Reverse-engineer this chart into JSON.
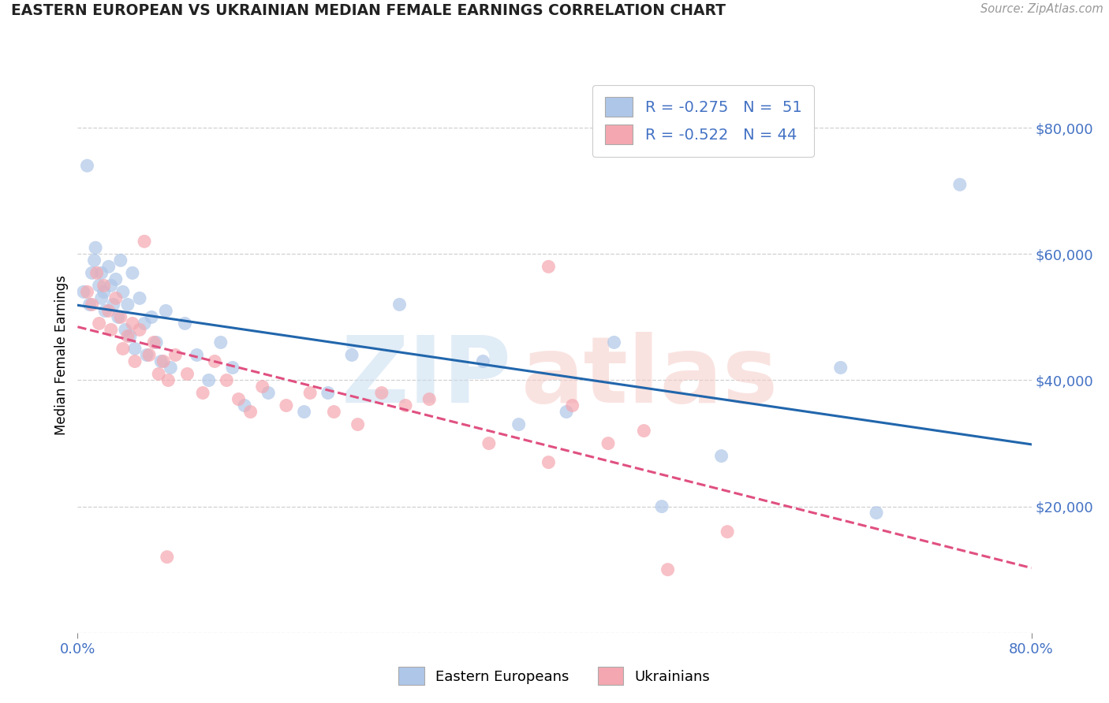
{
  "title": "EASTERN EUROPEAN VS UKRAINIAN MEDIAN FEMALE EARNINGS CORRELATION CHART",
  "source": "Source: ZipAtlas.com",
  "ylabel": "Median Female Earnings",
  "xlim": [
    0.0,
    0.8
  ],
  "ylim": [
    0,
    88000
  ],
  "yticks": [
    0,
    20000,
    40000,
    60000,
    80000
  ],
  "ytick_labels": [
    "",
    "$20,000",
    "$40,000",
    "$60,000",
    "$80,000"
  ],
  "xtick_labels": [
    "0.0%",
    "80.0%"
  ],
  "legend_line1": "R = -0.275   N =  51",
  "legend_line2": "R = -0.522   N = 44",
  "blue_color": "#aec6e8",
  "pink_color": "#f4a7b0",
  "blue_line_color": "#2166ac",
  "pink_line_color": "#e05080",
  "dashed_line_color": "#e8b0b8",
  "blue_scatter": [
    [
      0.005,
      54000
    ],
    [
      0.01,
      52000
    ],
    [
      0.012,
      57000
    ],
    [
      0.014,
      59000
    ],
    [
      0.015,
      61000
    ],
    [
      0.018,
      55000
    ],
    [
      0.02,
      57000
    ],
    [
      0.02,
      53000
    ],
    [
      0.022,
      54000
    ],
    [
      0.023,
      51000
    ],
    [
      0.026,
      58000
    ],
    [
      0.028,
      55000
    ],
    [
      0.03,
      52000
    ],
    [
      0.032,
      56000
    ],
    [
      0.034,
      50000
    ],
    [
      0.036,
      59000
    ],
    [
      0.038,
      54000
    ],
    [
      0.04,
      48000
    ],
    [
      0.042,
      52000
    ],
    [
      0.044,
      47000
    ],
    [
      0.046,
      57000
    ],
    [
      0.048,
      45000
    ],
    [
      0.052,
      53000
    ],
    [
      0.056,
      49000
    ],
    [
      0.058,
      44000
    ],
    [
      0.062,
      50000
    ],
    [
      0.066,
      46000
    ],
    [
      0.07,
      43000
    ],
    [
      0.074,
      51000
    ],
    [
      0.078,
      42000
    ],
    [
      0.09,
      49000
    ],
    [
      0.1,
      44000
    ],
    [
      0.11,
      40000
    ],
    [
      0.12,
      46000
    ],
    [
      0.13,
      42000
    ],
    [
      0.14,
      36000
    ],
    [
      0.16,
      38000
    ],
    [
      0.19,
      35000
    ],
    [
      0.21,
      38000
    ],
    [
      0.23,
      44000
    ],
    [
      0.27,
      52000
    ],
    [
      0.34,
      43000
    ],
    [
      0.37,
      33000
    ],
    [
      0.41,
      35000
    ],
    [
      0.45,
      46000
    ],
    [
      0.49,
      20000
    ],
    [
      0.54,
      28000
    ],
    [
      0.64,
      42000
    ],
    [
      0.67,
      19000
    ],
    [
      0.74,
      71000
    ],
    [
      0.008,
      74000
    ]
  ],
  "pink_scatter": [
    [
      0.008,
      54000
    ],
    [
      0.012,
      52000
    ],
    [
      0.016,
      57000
    ],
    [
      0.018,
      49000
    ],
    [
      0.022,
      55000
    ],
    [
      0.026,
      51000
    ],
    [
      0.028,
      48000
    ],
    [
      0.032,
      53000
    ],
    [
      0.036,
      50000
    ],
    [
      0.038,
      45000
    ],
    [
      0.042,
      47000
    ],
    [
      0.046,
      49000
    ],
    [
      0.048,
      43000
    ],
    [
      0.052,
      48000
    ],
    [
      0.056,
      62000
    ],
    [
      0.06,
      44000
    ],
    [
      0.064,
      46000
    ],
    [
      0.068,
      41000
    ],
    [
      0.072,
      43000
    ],
    [
      0.076,
      40000
    ],
    [
      0.082,
      44000
    ],
    [
      0.092,
      41000
    ],
    [
      0.105,
      38000
    ],
    [
      0.115,
      43000
    ],
    [
      0.125,
      40000
    ],
    [
      0.135,
      37000
    ],
    [
      0.145,
      35000
    ],
    [
      0.155,
      39000
    ],
    [
      0.175,
      36000
    ],
    [
      0.195,
      38000
    ],
    [
      0.215,
      35000
    ],
    [
      0.235,
      33000
    ],
    [
      0.255,
      38000
    ],
    [
      0.275,
      36000
    ],
    [
      0.295,
      37000
    ],
    [
      0.345,
      30000
    ],
    [
      0.395,
      27000
    ],
    [
      0.415,
      36000
    ],
    [
      0.445,
      30000
    ],
    [
      0.475,
      32000
    ],
    [
      0.495,
      10000
    ],
    [
      0.545,
      16000
    ],
    [
      0.075,
      12000
    ],
    [
      0.395,
      58000
    ]
  ],
  "grid_color": "#d0d0d0",
  "bg_color": "#ffffff",
  "title_color": "#222222",
  "axis_blue": "#4472c4",
  "source_color": "#999999",
  "watermark_blue": "#c8ddf0",
  "watermark_pink": "#f5ccc8"
}
